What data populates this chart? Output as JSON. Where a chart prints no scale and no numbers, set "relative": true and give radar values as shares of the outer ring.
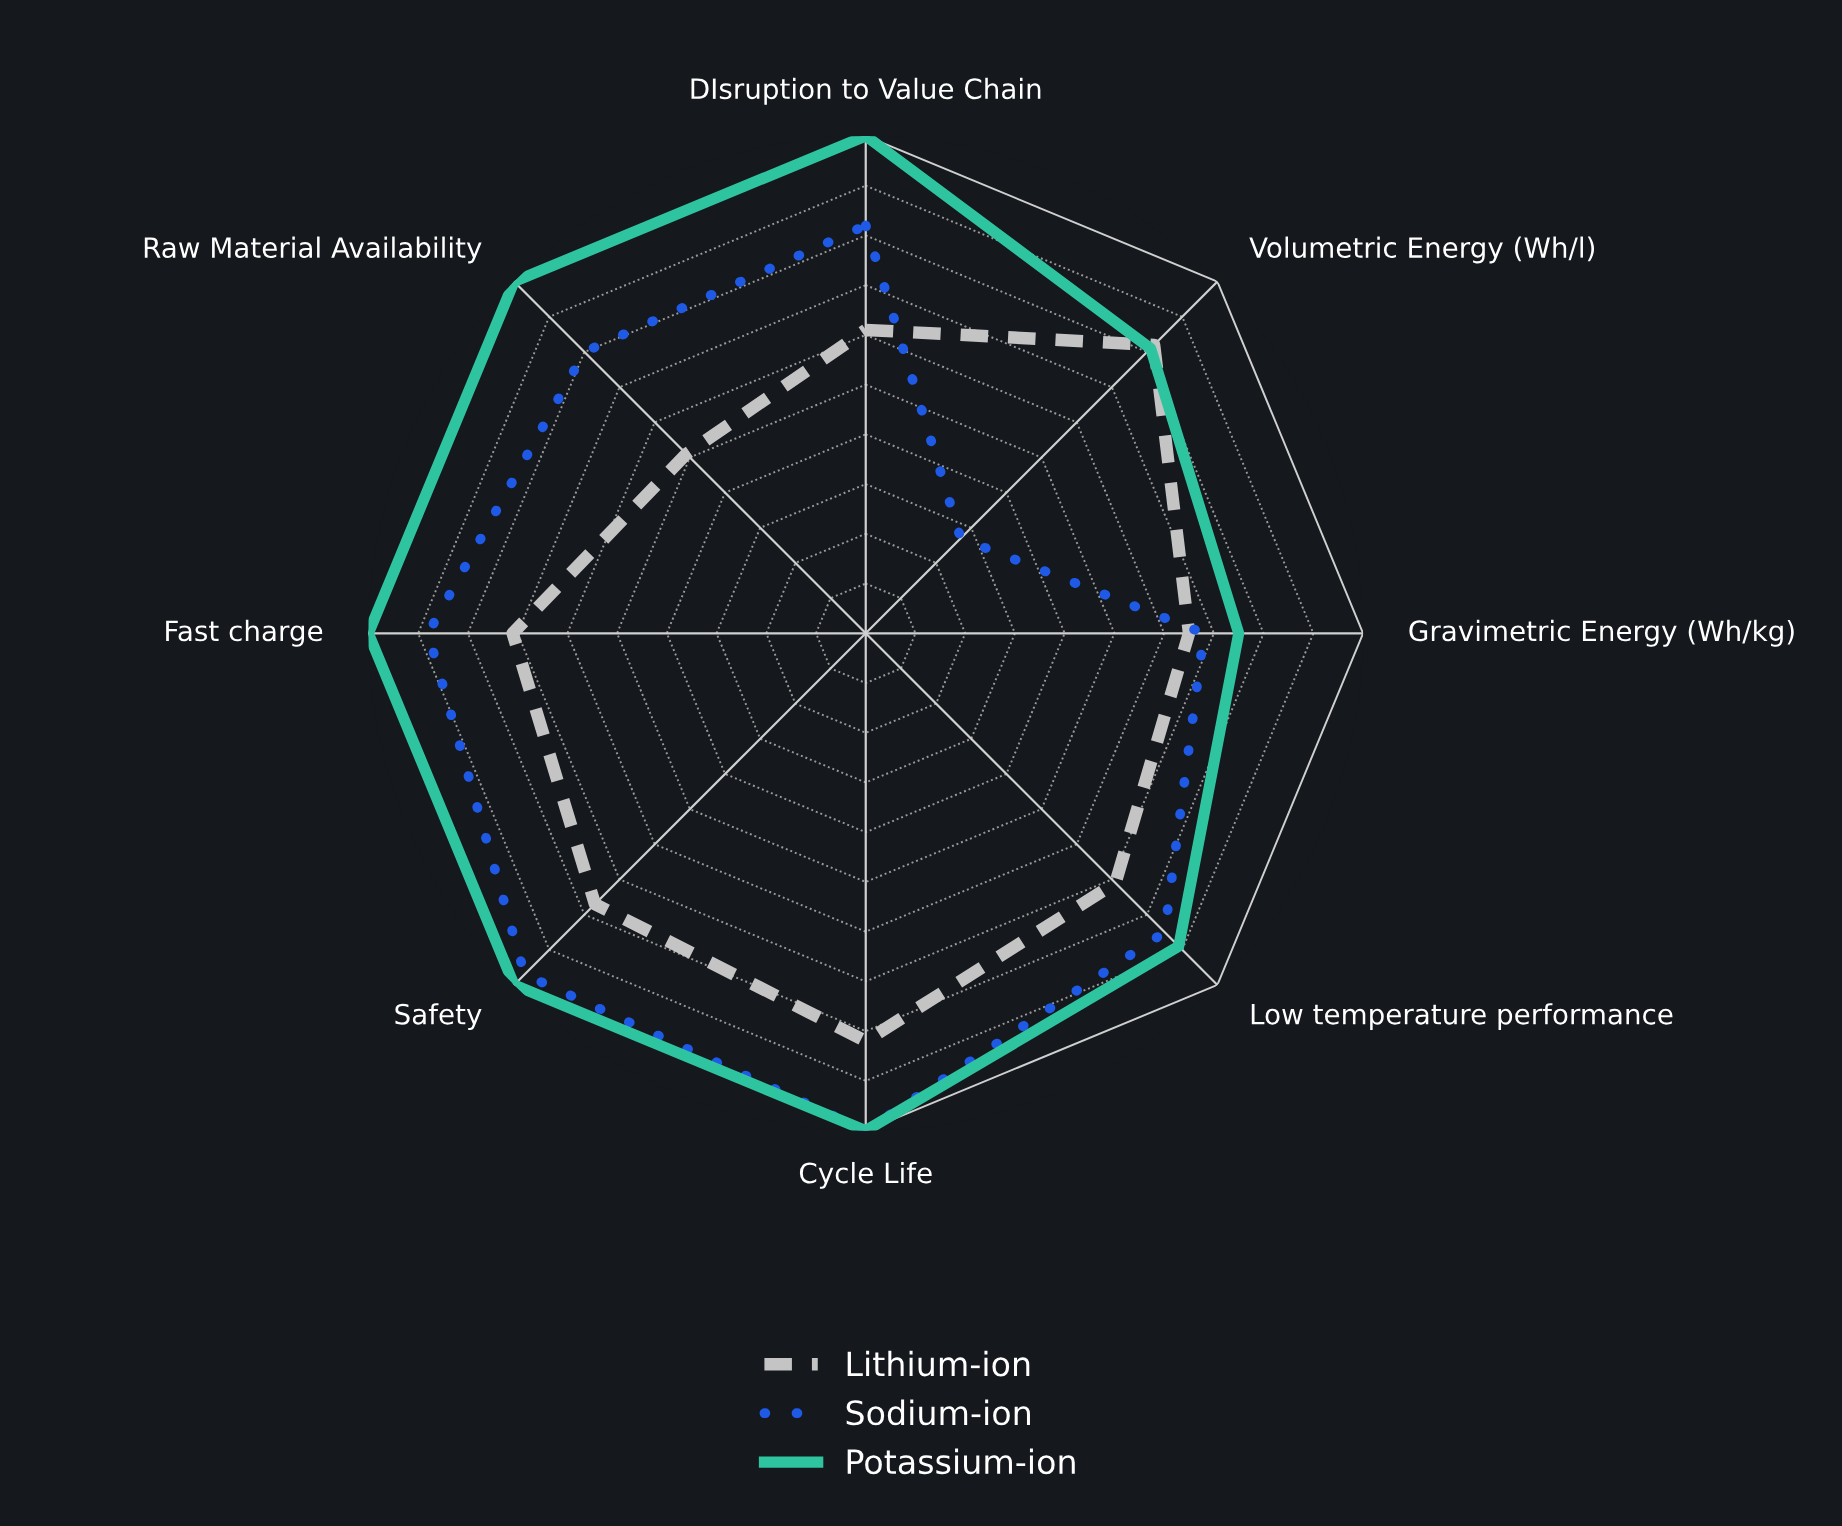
{
  "chart_data": {
    "type": "radar",
    "relative": true,
    "grid": true,
    "legend": "bottom",
    "categories": [
      "DIsruption to Value Chain",
      "Volumetric Energy (Wh/l)",
      "Gravimetric Energy (Wh/kg)",
      "Low temperature performance",
      "Cycle Life",
      "Safety",
      "Fast charge",
      "Raw Material Availability"
    ],
    "series": [
      {
        "name": "Lithium-ion",
        "color": "#c4c4c4",
        "line_style": "dashed",
        "values": [
          0.61,
          0.82,
          0.65,
          0.71,
          0.82,
          0.77,
          0.71,
          0.51
        ]
      },
      {
        "name": "Sodium-ion",
        "color": "#1f5ae6",
        "line_style": "dotted",
        "values": [
          0.82,
          0.27,
          0.68,
          0.85,
          1.0,
          0.97,
          0.88,
          0.8
        ]
      },
      {
        "name": "Potassium-ion",
        "color": "#2ec4a0",
        "line_style": "solid",
        "values": [
          1.0,
          0.81,
          0.75,
          0.89,
          1.0,
          1.0,
          1.0,
          1.0
        ]
      }
    ]
  }
}
